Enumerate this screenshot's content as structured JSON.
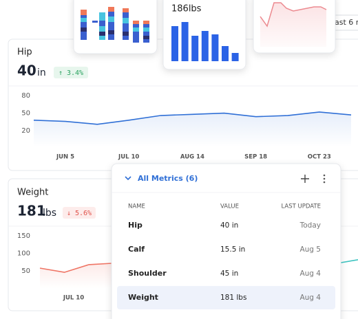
{
  "preview_cards": {
    "weight_value": "186lbs",
    "weight_bars": [
      51,
      57,
      37,
      44,
      39,
      22,
      12
    ]
  },
  "range_button": "ast 6 m",
  "hip": {
    "title": "Hip",
    "value": "40",
    "unit": "in",
    "change": "↑ 3.4%",
    "chart": {
      "type": "line",
      "ylim": [
        -8,
        93
      ],
      "yticks": [
        20,
        50,
        80
      ],
      "categories": [
        "JUN 5",
        "JUL 10",
        "AUG 14",
        "SEP 18",
        "OCT 23"
      ],
      "color": "#2f6fd6",
      "values": [
        38,
        36,
        31,
        38,
        46,
        48,
        50,
        44,
        46,
        52,
        47
      ]
    }
  },
  "weight": {
    "title": "Weight",
    "value": "181",
    "unit": "lbs",
    "change": "↓ 5.6%",
    "chart": {
      "type": "line",
      "ylim": [
        0,
        172
      ],
      "yticks": [
        50,
        100,
        150
      ],
      "categories": [
        "JUL 10"
      ],
      "series": [
        {
          "color": "#ef7464",
          "values": [
            58,
            46,
            68,
            72,
            73,
            null,
            null,
            null,
            null,
            null,
            null,
            null,
            null,
            null
          ]
        },
        {
          "color": "#3cc3c0",
          "values": [
            null,
            null,
            null,
            null,
            null,
            null,
            null,
            null,
            null,
            null,
            null,
            null,
            70,
            82
          ]
        }
      ]
    }
  },
  "popup": {
    "title": "All Metrics (6)",
    "columns": [
      "NAME",
      "VALUE",
      "LAST UPDATE"
    ],
    "rows": [
      [
        "Hip",
        "40 in",
        "Today"
      ],
      [
        "Calf",
        "15.5 in",
        "Aug 5"
      ],
      [
        "Shoulder",
        "45 in",
        "Aug 4"
      ],
      [
        "Weight",
        "181 lbs",
        "Aug 4"
      ]
    ]
  }
}
